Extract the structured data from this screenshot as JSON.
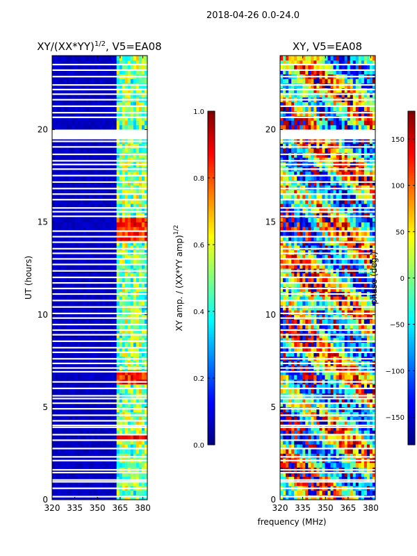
{
  "chart_data": {
    "type": "heatmap",
    "suptitle": "2018-04-26 0.0-24.0",
    "shared_xlabel": "frequency (MHz)",
    "panels": [
      {
        "title_base": "XY/(XX*YY)",
        "title_sup": "1/2",
        "title_suffix": ", V5=EA08",
        "ylabel": "UT (hours)",
        "xlim": [
          320,
          383
        ],
        "ylim": [
          0,
          24
        ],
        "xticks": [
          "320",
          "335",
          "350",
          "365",
          "380"
        ],
        "xtick_values": [
          320,
          335,
          350,
          365,
          380
        ],
        "yticks": [
          "0",
          "5",
          "10",
          "15",
          "20"
        ],
        "ytick_values": [
          0,
          5,
          10,
          15,
          20
        ],
        "colorbar": {
          "label_base": "XY amp. / (XX*YY amp)",
          "label_sup": "1/2",
          "range": [
            0.0,
            1.0
          ],
          "ticks": [
            "0.0",
            "0.2",
            "0.4",
            "0.6",
            "0.8",
            "1.0"
          ],
          "tick_values": [
            0.0,
            0.2,
            0.4,
            0.6,
            0.8,
            1.0
          ]
        },
        "kind": "amp"
      },
      {
        "title_base": "XY, V5=EA08",
        "title_sup": "",
        "title_suffix": "",
        "ylabel": "",
        "xlim": [
          320,
          383
        ],
        "ylim": [
          0,
          24
        ],
        "xticks": [
          "320",
          "335",
          "350",
          "365",
          "380"
        ],
        "xtick_values": [
          320,
          335,
          350,
          365,
          380
        ],
        "yticks": [
          "0",
          "5",
          "10",
          "15",
          "20"
        ],
        "ytick_values": [
          0,
          5,
          10,
          15,
          20
        ],
        "colorbar": {
          "label_base": "phase (deg.)",
          "label_sup": "",
          "range": [
            -180,
            180
          ],
          "ticks": [
            "−150",
            "−100",
            "−50",
            "0",
            "50",
            "100",
            "150"
          ],
          "tick_values": [
            -150,
            -100,
            -50,
            0,
            50,
            100,
            150
          ]
        },
        "kind": "phase"
      }
    ],
    "flagged_ut_hours": [
      0.15,
      0.6,
      0.95,
      1.05,
      1.45,
      1.6,
      2.1,
      2.3,
      2.75,
      3.2,
      3.5,
      3.9,
      4.0,
      4.25,
      4.55,
      4.9,
      5.2,
      5.45,
      5.6,
      6.0,
      6.35,
      6.9,
      7.1,
      7.35,
      7.6,
      7.95,
      8.2,
      8.55,
      8.9,
      9.15,
      9.45,
      9.8,
      10.05,
      10.4,
      10.75,
      11.1,
      11.4,
      11.7,
      12.0,
      12.35,
      12.7,
      13.0,
      13.3,
      13.55,
      13.9,
      14.2,
      14.5,
      15.3,
      15.55,
      15.75,
      16.2,
      16.5,
      16.8,
      17.15,
      17.5,
      17.85,
      18.1,
      18.3,
      18.65,
      19.05,
      19.35,
      19.5,
      19.65,
      20.65,
      20.9,
      21.25,
      21.6,
      21.9,
      22.15,
      22.4,
      22.85,
      23.2,
      23.5
    ]
  }
}
